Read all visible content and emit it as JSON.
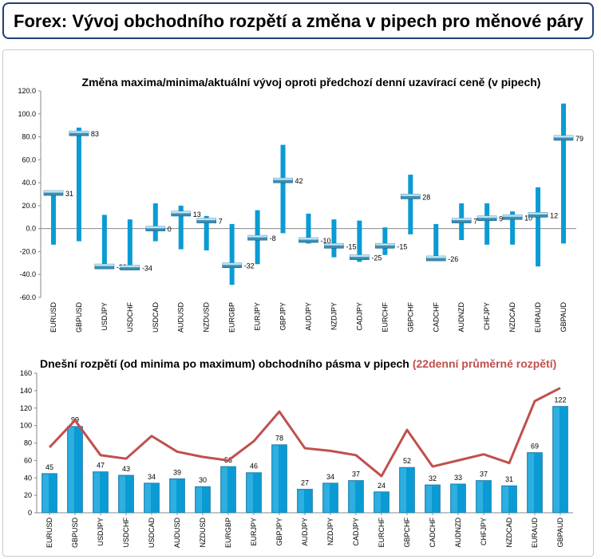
{
  "header": {
    "title": "Forex: Vývoj obchodního rozpětí a změna v pipech pro měnové páry"
  },
  "chart_data": [
    {
      "type": "bar",
      "title": "Změna maxima/minima/aktuální vývoj oproti předchozí denní uzavírací ceně (v pipech)",
      "categories": [
        "EURUSD",
        "GBPUSD",
        "USDJPY",
        "USDCHF",
        "USDCAD",
        "AUDUSD",
        "NZDUSD",
        "EURGBP",
        "EURJPY",
        "GBPJPY",
        "AUDJPY",
        "NZDJPY",
        "CADJPY",
        "EURCHF",
        "GBPCHF",
        "CADCHF",
        "AUDNZD",
        "CHFJPY",
        "NZDCAD",
        "EURAUD",
        "GBPAUD"
      ],
      "high": [
        30,
        88,
        12,
        8,
        22,
        20,
        11,
        4,
        16,
        73,
        13,
        8,
        7,
        1,
        47,
        4,
        22,
        22,
        15,
        36,
        109
      ],
      "low": [
        -14,
        -11,
        -33,
        -34,
        -11,
        -18,
        -19,
        -49,
        -31,
        -4,
        -13,
        -25,
        -29,
        -23,
        -5,
        -27,
        -10,
        -14,
        -14,
        -33,
        -13
      ],
      "current": [
        31,
        83,
        -33,
        -34,
        0,
        13,
        7,
        -32,
        -8,
        42,
        -10,
        -15,
        -25,
        -15,
        28,
        -26,
        7,
        9,
        10,
        12,
        79
      ],
      "ylim": [
        -60,
        120
      ],
      "yticks": [
        "-60.0",
        "-40.0",
        "-20.0",
        "0.0",
        "20.0",
        "40.0",
        "60.0",
        "80.0",
        "100.0",
        "120.0"
      ]
    },
    {
      "type": "bar",
      "title": "Dnešní rozpětí (od minima po maximum) obchodního pásma v pipech",
      "title_highlight": "(22denní průměrné rozpětí)",
      "categories": [
        "EURUSD",
        "GBPUSD",
        "USDJPY",
        "USDCHF",
        "USDCAD",
        "AUDUSD",
        "NZDUSD",
        "EURGBP",
        "EURJPY",
        "GBPJPY",
        "AUDJPY",
        "NZDJPY",
        "CADJPY",
        "EURCHF",
        "GBPCHF",
        "CADCHF",
        "AUDNZD",
        "CHFJPY",
        "NZDCAD",
        "EURAUD",
        "GBPAUD"
      ],
      "values": [
        45,
        99,
        47,
        43,
        34,
        39,
        30,
        53,
        46,
        78,
        27,
        34,
        37,
        24,
        52,
        32,
        33,
        37,
        31,
        69,
        122
      ],
      "avg_range": [
        75,
        106,
        66,
        62,
        88,
        70,
        64,
        60,
        82,
        116,
        74,
        71,
        66,
        42,
        95,
        53,
        60,
        67,
        57,
        128,
        143
      ],
      "ylim": [
        0,
        160
      ],
      "yticks": [
        "0",
        "20",
        "40",
        "60",
        "80",
        "100",
        "120",
        "140",
        "160"
      ]
    }
  ],
  "colors": {
    "bar": "#0a9bd4",
    "bar_light": "#48bde9",
    "avg_line": "#c0504d",
    "marker": "#3a8fb5",
    "header_border": "#1f3f7a"
  }
}
